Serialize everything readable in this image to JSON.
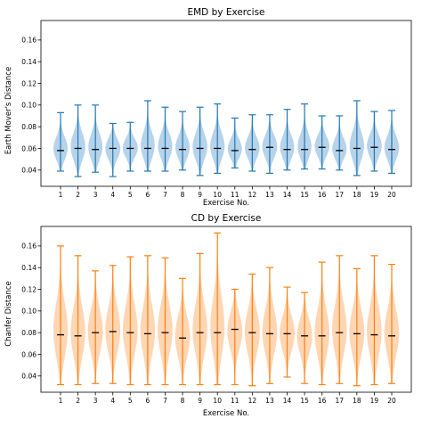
{
  "chart_data": [
    {
      "type": "violin",
      "title": "EMD by Exercise",
      "xlabel": "Exercise No.",
      "ylabel": "Earth Mover's Distance",
      "color": "#1f77b4",
      "fill_color": "#9ec4e3",
      "median_color": "#000000",
      "categories": [
        "1",
        "2",
        "3",
        "4",
        "5",
        "6",
        "7",
        "8",
        "9",
        "10",
        "11",
        "12",
        "13",
        "14",
        "15",
        "16",
        "17",
        "18",
        "19",
        "20"
      ],
      "ylim": [
        0.025,
        0.178
      ],
      "yticks": [
        "0.04",
        "0.06",
        "0.08",
        "0.10",
        "0.12",
        "0.14",
        "0.16"
      ],
      "grid": false,
      "series": [
        {
          "min": 0.039,
          "max": 0.093,
          "median": 0.058
        },
        {
          "min": 0.034,
          "max": 0.1,
          "median": 0.06
        },
        {
          "min": 0.038,
          "max": 0.1,
          "median": 0.059
        },
        {
          "min": 0.034,
          "max": 0.083,
          "median": 0.06
        },
        {
          "min": 0.039,
          "max": 0.084,
          "median": 0.06
        },
        {
          "min": 0.039,
          "max": 0.104,
          "median": 0.06
        },
        {
          "min": 0.039,
          "max": 0.098,
          "median": 0.06
        },
        {
          "min": 0.04,
          "max": 0.094,
          "median": 0.059
        },
        {
          "min": 0.035,
          "max": 0.098,
          "median": 0.06
        },
        {
          "min": 0.037,
          "max": 0.101,
          "median": 0.06
        },
        {
          "min": 0.042,
          "max": 0.088,
          "median": 0.058
        },
        {
          "min": 0.039,
          "max": 0.091,
          "median": 0.059
        },
        {
          "min": 0.037,
          "max": 0.091,
          "median": 0.061
        },
        {
          "min": 0.04,
          "max": 0.096,
          "median": 0.059
        },
        {
          "min": 0.041,
          "max": 0.101,
          "median": 0.059
        },
        {
          "min": 0.041,
          "max": 0.09,
          "median": 0.061
        },
        {
          "min": 0.04,
          "max": 0.09,
          "median": 0.058
        },
        {
          "min": 0.035,
          "max": 0.104,
          "median": 0.06
        },
        {
          "min": 0.039,
          "max": 0.094,
          "median": 0.061
        },
        {
          "min": 0.037,
          "max": 0.095,
          "median": 0.059
        }
      ]
    },
    {
      "type": "violin",
      "title": "CD by Exercise",
      "xlabel": "Exercise No.",
      "ylabel": "Chanfer Distance",
      "color": "#ff7f0e",
      "fill_color": "#ffc89a",
      "median_color": "#000000",
      "categories": [
        "1",
        "2",
        "3",
        "4",
        "5",
        "6",
        "7",
        "8",
        "9",
        "10",
        "11",
        "12",
        "13",
        "14",
        "15",
        "16",
        "17",
        "18",
        "19",
        "20"
      ],
      "ylim": [
        0.025,
        0.178
      ],
      "yticks": [
        "0.04",
        "0.06",
        "0.08",
        "0.10",
        "0.12",
        "0.14",
        "0.16"
      ],
      "grid": false,
      "series": [
        {
          "min": 0.032,
          "max": 0.16,
          "median": 0.078
        },
        {
          "min": 0.032,
          "max": 0.151,
          "median": 0.077
        },
        {
          "min": 0.033,
          "max": 0.137,
          "median": 0.08
        },
        {
          "min": 0.033,
          "max": 0.142,
          "median": 0.081
        },
        {
          "min": 0.032,
          "max": 0.15,
          "median": 0.08
        },
        {
          "min": 0.032,
          "max": 0.151,
          "median": 0.079
        },
        {
          "min": 0.032,
          "max": 0.149,
          "median": 0.08
        },
        {
          "min": 0.032,
          "max": 0.13,
          "median": 0.075
        },
        {
          "min": 0.032,
          "max": 0.153,
          "median": 0.08
        },
        {
          "min": 0.032,
          "max": 0.172,
          "median": 0.08
        },
        {
          "min": 0.032,
          "max": 0.12,
          "median": 0.083
        },
        {
          "min": 0.031,
          "max": 0.134,
          "median": 0.08
        },
        {
          "min": 0.033,
          "max": 0.14,
          "median": 0.079
        },
        {
          "min": 0.039,
          "max": 0.122,
          "median": 0.079
        },
        {
          "min": 0.033,
          "max": 0.117,
          "median": 0.077
        },
        {
          "min": 0.032,
          "max": 0.145,
          "median": 0.077
        },
        {
          "min": 0.033,
          "max": 0.151,
          "median": 0.08
        },
        {
          "min": 0.031,
          "max": 0.139,
          "median": 0.079
        },
        {
          "min": 0.032,
          "max": 0.151,
          "median": 0.078
        },
        {
          "min": 0.033,
          "max": 0.143,
          "median": 0.077
        }
      ]
    }
  ]
}
